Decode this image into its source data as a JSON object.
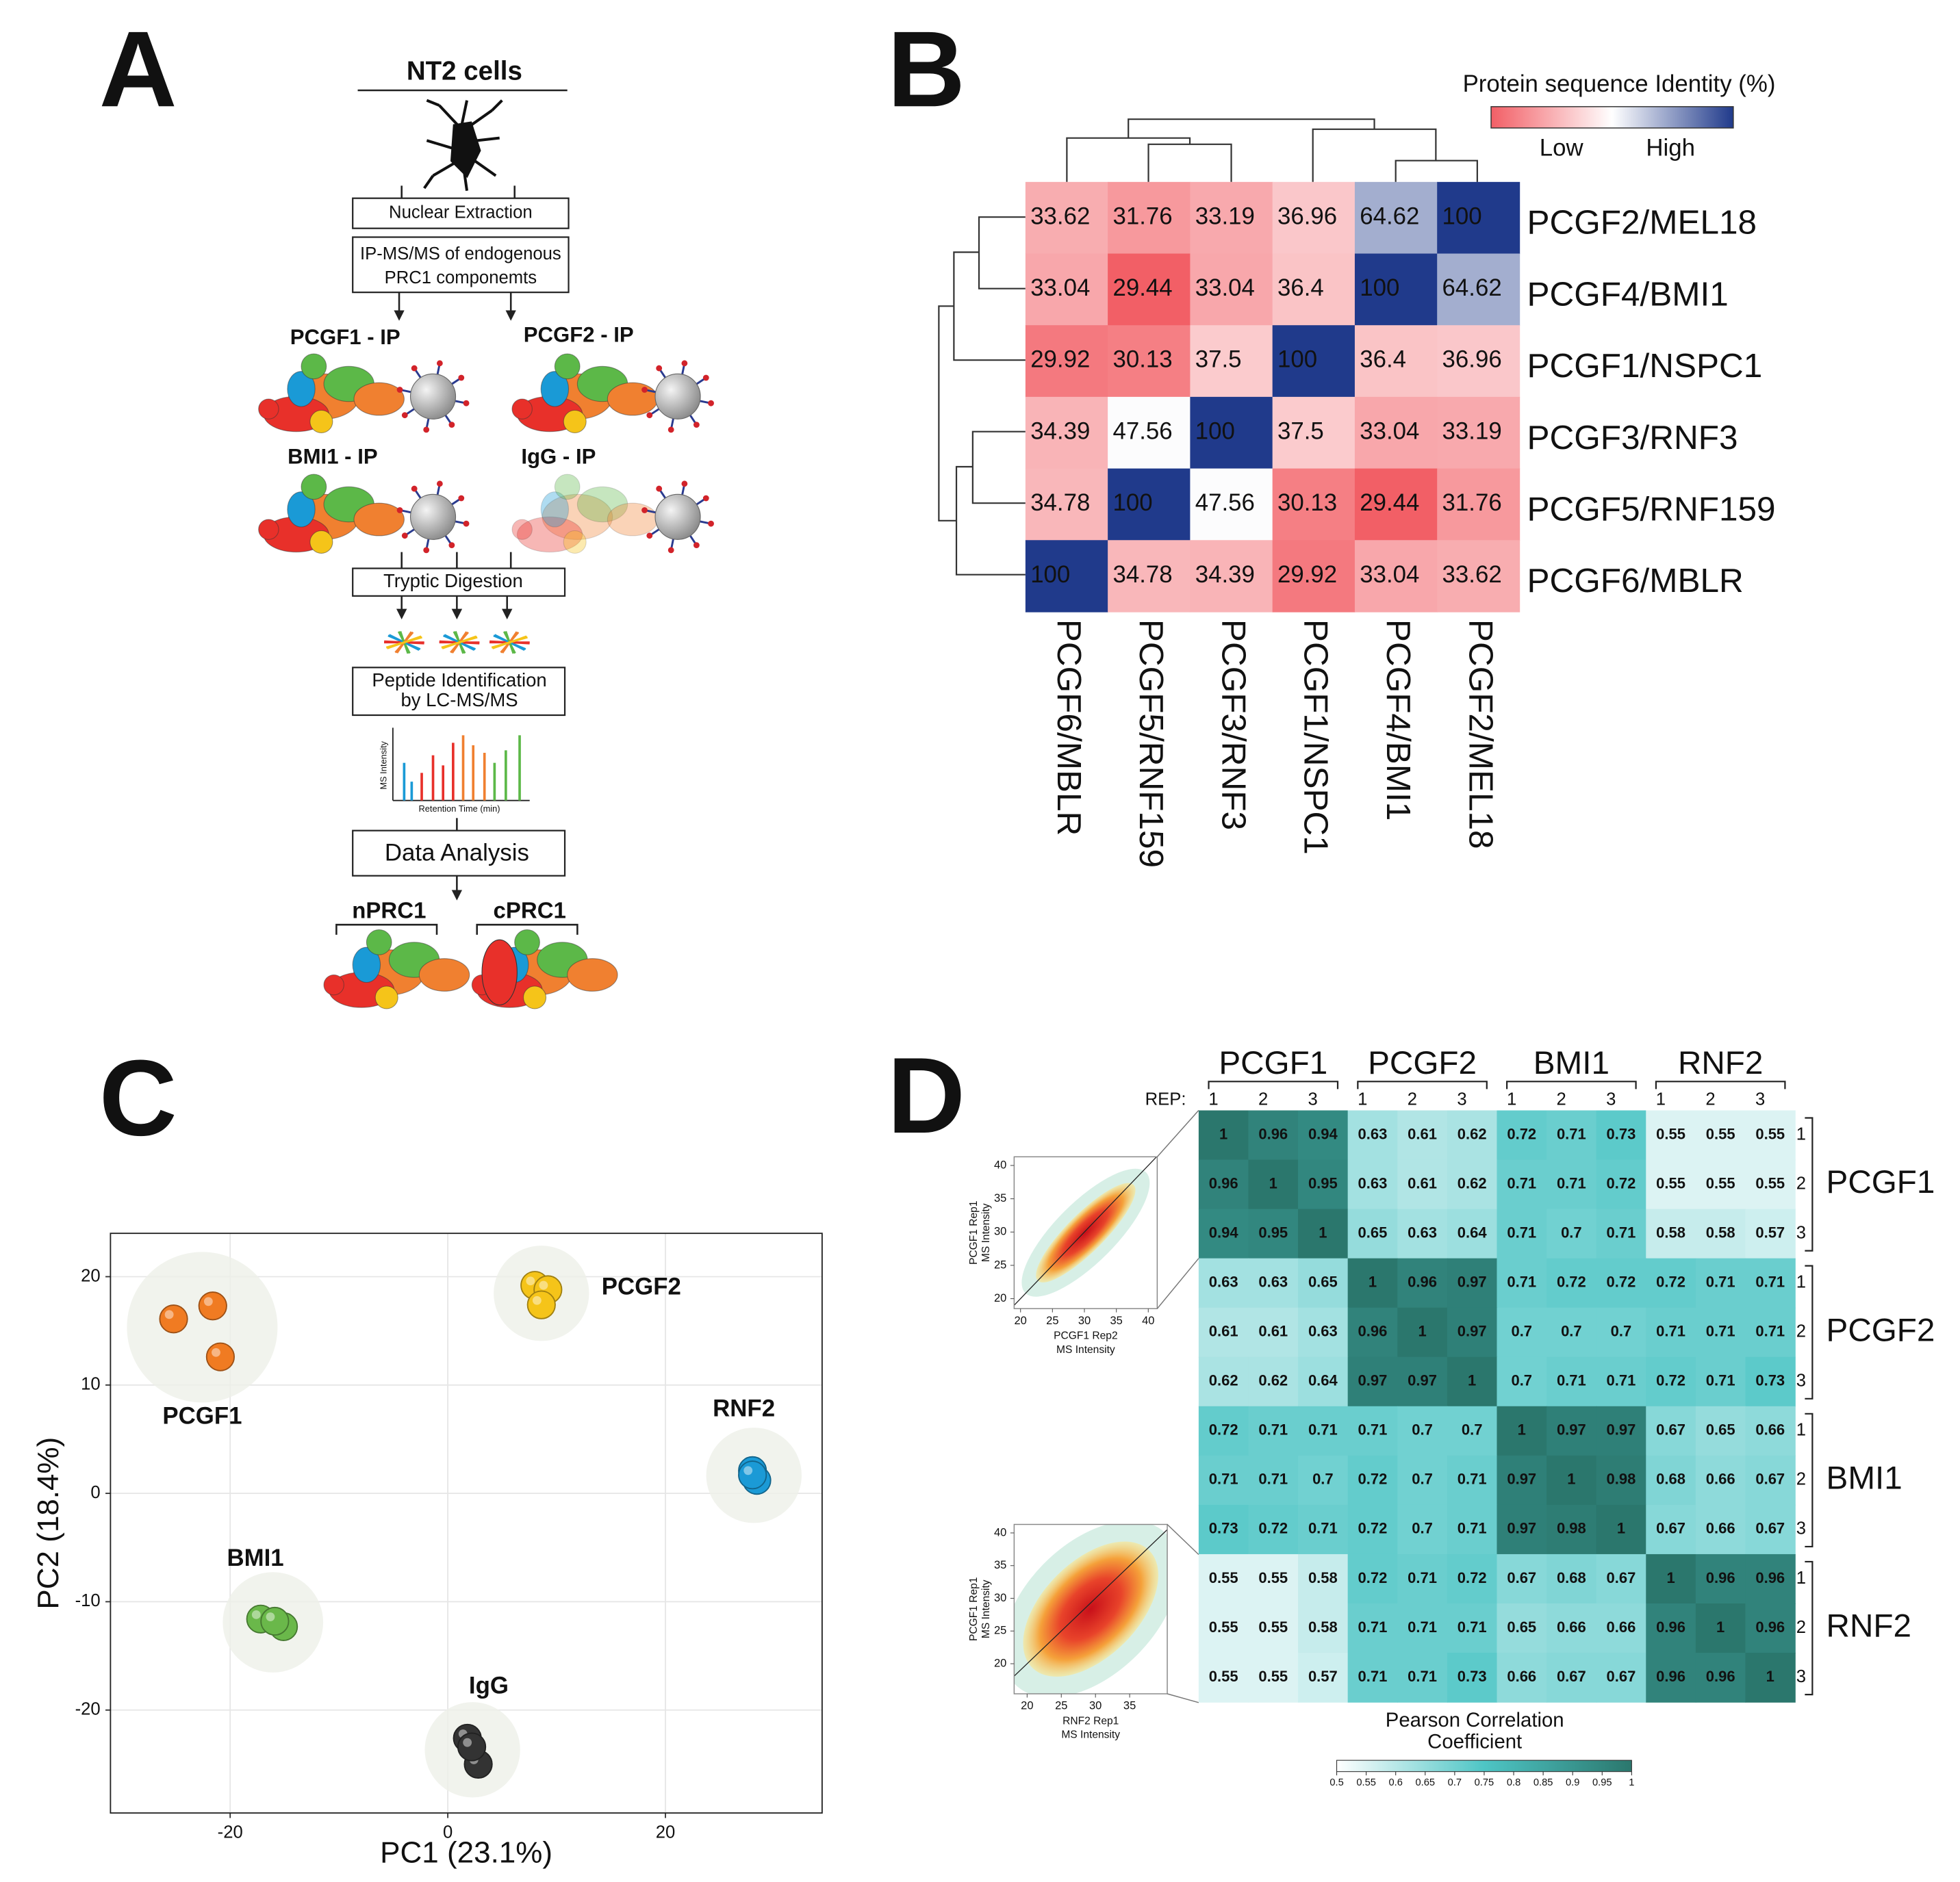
{
  "panel_labels": [
    "A",
    "B",
    "C",
    "D"
  ],
  "diagram": {
    "source": "NT2 cells",
    "nuclear_extraction": "Nuclear Extraction",
    "ip_ms": [
      "IP-MS/MS of endogenous",
      "PRC1 componemts"
    ],
    "ips": [
      "PCGF1 - IP",
      "PCGF2 - IP",
      "BMI1 - IP",
      "IgG - IP"
    ],
    "digestion": "Tryptic Digestion",
    "identification": [
      "Peptide Identification",
      "by LC-MS/MS"
    ],
    "spectrum_ylabel": "MS Intensity",
    "spectrum_xlabel": "Retention Time (min)",
    "analysis": "Data Analysis",
    "outcomes": [
      "nPRC1",
      "cPRC1"
    ]
  },
  "chart_data": [
    {
      "type": "heatmap",
      "rows": [
        "PCGF2/MEL18",
        "PCGF4/BMI1",
        "PCGF1/NSPC1",
        "PCGF3/RNF3",
        "PCGF5/RNF159",
        "PCGF6/MBLR"
      ],
      "columns": [
        "PCGF6/MBLR",
        "PCGF5/RNF159",
        "PCGF3/RNF3",
        "PCGF1/NSPC1",
        "PCGF4/BMI1",
        "PCGF2/MEL18"
      ],
      "values": [
        [
          33.62,
          31.76,
          33.19,
          36.96,
          64.62,
          100
        ],
        [
          33.04,
          29.44,
          33.04,
          36.4,
          100,
          64.62
        ],
        [
          29.92,
          30.13,
          37.5,
          100,
          36.4,
          36.96
        ],
        [
          34.39,
          47.56,
          100,
          37.5,
          33.04,
          33.19
        ],
        [
          34.78,
          100,
          47.56,
          30.13,
          29.44,
          31.76
        ],
        [
          100,
          34.78,
          34.39,
          29.92,
          33.04,
          33.62
        ]
      ],
      "colorbar_title": "Protein sequence Identity (%)",
      "colorbar_labels": [
        "Low",
        "High"
      ],
      "colors": [
        "#f25f66",
        "#ffffff",
        "#203a8b"
      ]
    },
    {
      "type": "scatter",
      "xlabel": "PC1 (23.1%)",
      "ylabel": "PC2 (18.4%)",
      "xlim": [
        -31,
        34.4
      ],
      "ylim": [
        -29.5,
        24
      ],
      "xticks": [
        -20,
        0,
        20
      ],
      "yticks": [
        -20,
        -10,
        0,
        10,
        20
      ],
      "grid": true,
      "series": [
        {
          "name": "PCGF1",
          "color": "#f07b22",
          "x": [
            -25.2,
            -21.6,
            -20.9
          ],
          "y": [
            16.1,
            17.3,
            12.6
          ]
        },
        {
          "name": "PCGF2",
          "color": "#f5c419",
          "x": [
            8.0,
            9.2,
            8.6
          ],
          "y": [
            19.2,
            18.8,
            17.4
          ]
        },
        {
          "name": "RNF2",
          "color": "#1b9ad6",
          "x": [
            28.0,
            28.4,
            28.0
          ],
          "y": [
            2.1,
            1.2,
            1.7
          ]
        },
        {
          "name": "BMI1",
          "color": "#6ab84a",
          "x": [
            -17.2,
            -15.1,
            -15.9
          ],
          "y": [
            -11.6,
            -12.3,
            -11.8
          ]
        },
        {
          "name": "IgG",
          "color": "#333333",
          "x": [
            1.8,
            2.8,
            2.2
          ],
          "y": [
            -22.6,
            -25.0,
            -23.4
          ]
        }
      ]
    },
    {
      "type": "correlation",
      "groups": [
        "PCGF1",
        "PCGF2",
        "BMI1",
        "RNF2"
      ],
      "replicates": [
        "1",
        "2",
        "3"
      ],
      "rep_label": "REP:",
      "values": [
        [
          1,
          0.96,
          0.94,
          0.63,
          0.61,
          0.62,
          0.72,
          0.71,
          0.73,
          0.55,
          0.55,
          0.55
        ],
        [
          0.96,
          1,
          0.95,
          0.63,
          0.61,
          0.62,
          0.71,
          0.71,
          0.72,
          0.55,
          0.55,
          0.55
        ],
        [
          0.94,
          0.95,
          1,
          0.65,
          0.63,
          0.64,
          0.71,
          0.7,
          0.71,
          0.58,
          0.58,
          0.57
        ],
        [
          0.63,
          0.63,
          0.65,
          1,
          0.96,
          0.97,
          0.71,
          0.72,
          0.72,
          0.72,
          0.71,
          0.71
        ],
        [
          0.61,
          0.61,
          0.63,
          0.96,
          1,
          0.97,
          0.7,
          0.7,
          0.7,
          0.71,
          0.71,
          0.71
        ],
        [
          0.62,
          0.62,
          0.64,
          0.97,
          0.97,
          1,
          0.7,
          0.71,
          0.71,
          0.72,
          0.71,
          0.73
        ],
        [
          0.72,
          0.71,
          0.71,
          0.71,
          0.7,
          0.7,
          1,
          0.97,
          0.97,
          0.67,
          0.65,
          0.66
        ],
        [
          0.71,
          0.71,
          0.7,
          0.72,
          0.7,
          0.71,
          0.97,
          1,
          0.98,
          0.68,
          0.66,
          0.67
        ],
        [
          0.73,
          0.72,
          0.71,
          0.72,
          0.7,
          0.71,
          0.97,
          0.98,
          1,
          0.67,
          0.66,
          0.67
        ],
        [
          0.55,
          0.55,
          0.58,
          0.72,
          0.71,
          0.72,
          0.67,
          0.68,
          0.67,
          1,
          0.96,
          0.96
        ],
        [
          0.55,
          0.55,
          0.58,
          0.71,
          0.71,
          0.71,
          0.65,
          0.66,
          0.66,
          0.96,
          1,
          0.96
        ],
        [
          0.55,
          0.55,
          0.57,
          0.71,
          0.71,
          0.73,
          0.66,
          0.67,
          0.67,
          0.96,
          0.96,
          1
        ]
      ],
      "colorbar_title": [
        "Pearson Correlation",
        "Coefficient"
      ],
      "colorbar_lim": [
        0.5,
        1
      ],
      "colorbar_ticks": [
        0.5,
        0.55,
        0.6,
        0.65,
        0.7,
        0.75,
        0.8,
        0.85,
        0.9,
        0.95,
        1
      ],
      "colors": [
        "#ffffff",
        "#4ec5c5",
        "#2b776d"
      ]
    },
    {
      "type": "density",
      "xlabel": [
        "PCGF1  Rep2",
        "MS Intensity"
      ],
      "ylabel": [
        "PCGF1  Rep1",
        "MS Intensity"
      ],
      "xlim": [
        19,
        41.4
      ],
      "ylim": [
        18.5,
        41.3
      ],
      "xticks": [
        20,
        25,
        30,
        35,
        40
      ],
      "yticks": [
        20,
        25,
        30,
        35,
        40
      ]
    },
    {
      "type": "density",
      "xlabel": [
        "RNF2  Rep1",
        "MS Intensity"
      ],
      "ylabel": [
        "PCGF1  Rep1",
        "MS Intensity"
      ],
      "xlim": [
        18.1,
        40.5
      ],
      "ylim": [
        15.4,
        41.3
      ],
      "xticks": [
        20,
        25,
        30,
        35
      ],
      "yticks": [
        20,
        25,
        30,
        35,
        40
      ]
    }
  ]
}
